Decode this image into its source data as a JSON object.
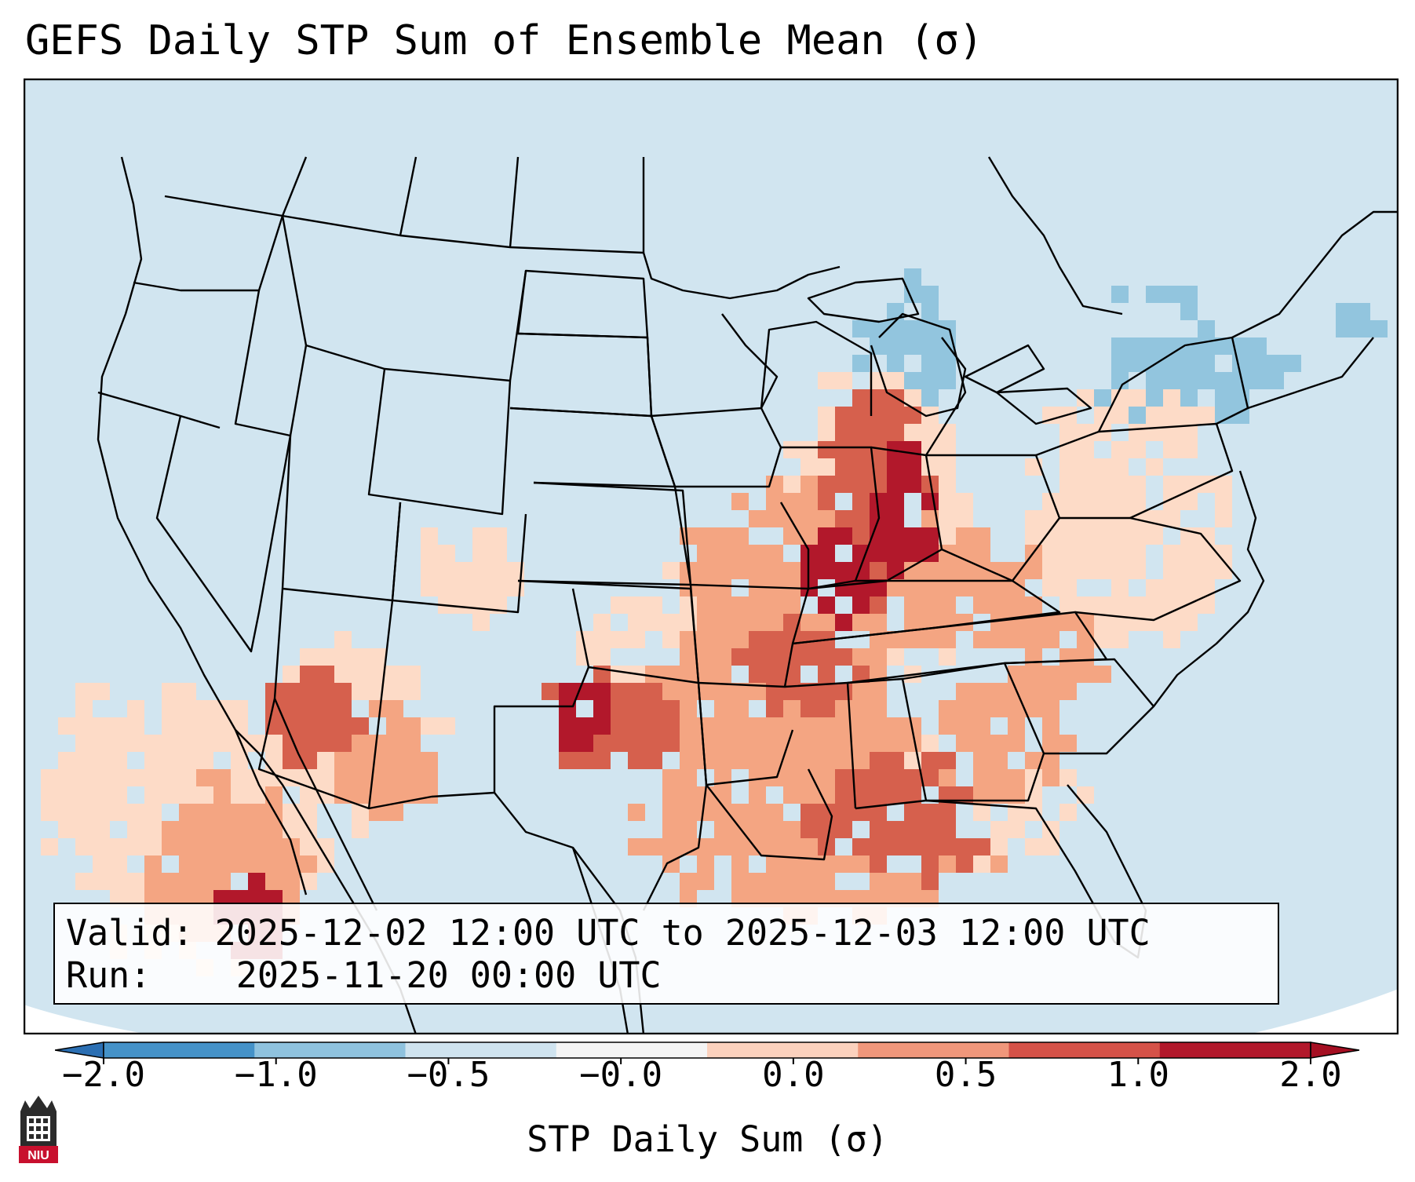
{
  "title": "GEFS Daily STP Sum of Ensemble Mean (σ)",
  "info": {
    "valid_label": "Valid:",
    "valid_value": "2025-12-02 12:00 UTC to 2025-12-03 12:00 UTC",
    "run_label": "Run:",
    "run_value": "2025-11-20 00:00 UTC"
  },
  "colorbar": {
    "label": "STP Daily Sum (σ)",
    "ticks": [
      "−2.0",
      "−1.0",
      "−0.5",
      "−0.0",
      "0.0",
      "0.5",
      "1.0",
      "2.0"
    ],
    "colors": [
      "#2b6fb3",
      "#4592c8",
      "#8fc2de",
      "#cfe3ef",
      "#f4f4f4",
      "#fbd1bd",
      "#f0977b",
      "#d55248",
      "#b2182b",
      "#a50f22"
    ],
    "extend": "both"
  },
  "map": {
    "ocean_color": "#d1e5f0",
    "categories": [
      "neutral",
      "neg-0.5",
      "neg-1.0",
      "pos-0.0",
      "pos-0.5",
      "pos-1.0",
      "pos-2.0"
    ],
    "category_colors": {
      "neutral": "#d1e5f0",
      "neg-0.5": "#92c5de",
      "neg-1.0": "#6ba6cf",
      "pos-0.0": "#fddbc7",
      "pos-0.5": "#f4a582",
      "pos-1.0": "#d6604d",
      "pos-2.0": "#b2182b"
    }
  },
  "logo": {
    "text": "NIU",
    "color": "#c8102e"
  }
}
